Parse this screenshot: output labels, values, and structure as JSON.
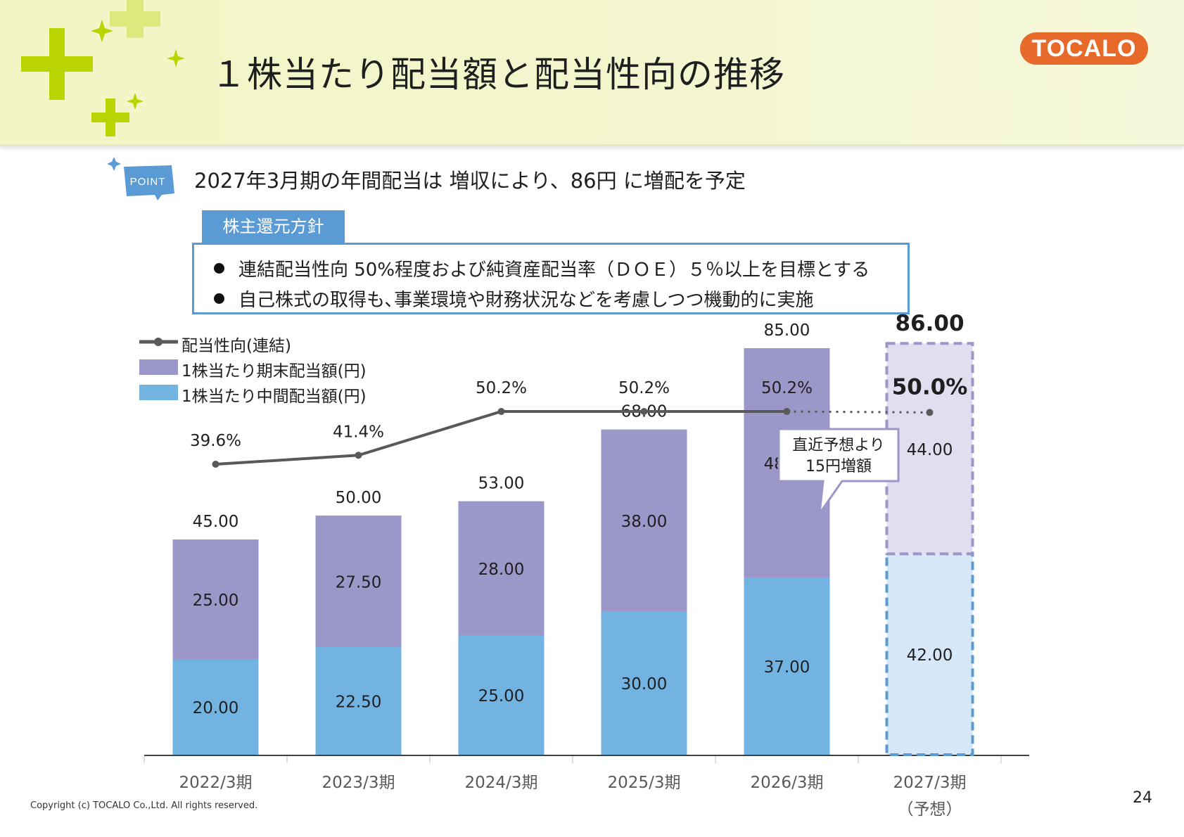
{
  "header": {
    "title": "１株当たり配当額と配当性向の推移",
    "logo_text": "TOCALO"
  },
  "point": {
    "badge_label": "POINT",
    "text": "2027年3月期の年間配当は 増収により、86円 に増配を予定"
  },
  "policy": {
    "tab_label": "株主還元方針",
    "items": [
      "連結配当性向 50%程度および純資産配当率（ＤＯＥ）５％以上を目標とする",
      "自己株式の取得も､事業環境や財務状況などを考慮しつつ機動的に実施"
    ]
  },
  "legend": [
    {
      "label": "配当性向(連結)",
      "color": "#595959"
    },
    {
      "label": "1株当たり期末配当額(円)",
      "color": "#9b97c9"
    },
    {
      "label": "1株当たり中間配当額(円)",
      "color": "#72b3e2"
    }
  ],
  "chart_data": {
    "type": "bar",
    "stacked": true,
    "categories": [
      "2022/3期",
      "2023/3期",
      "2024/3期",
      "2025/3期",
      "2026/3期",
      "2027/3期"
    ],
    "forecast_note": "（予想）",
    "series": [
      {
        "name": "1株当たり中間配当額(円)",
        "values": [
          20.0,
          22.5,
          25.0,
          30.0,
          37.0,
          42.0
        ],
        "color": "#72b3e2",
        "labels": [
          "20.00",
          "22.50",
          "25.00",
          "30.00",
          "37.00",
          "42.00"
        ]
      },
      {
        "name": "1株当たり期末配当額(円)",
        "values": [
          25.0,
          27.5,
          28.0,
          38.0,
          48.0,
          44.0
        ],
        "color": "#9b97c9",
        "labels": [
          "25.00",
          "27.50",
          "28.00",
          "38.00",
          "48.00",
          "44.00"
        ]
      }
    ],
    "totals": [
      45.0,
      50.0,
      53.0,
      68.0,
      85.0,
      86.0
    ],
    "total_labels": [
      "45.00",
      "50.00",
      "53.00",
      "68.00",
      "85.00",
      "86.00"
    ],
    "payout_ratio": {
      "name": "配当性向(連結)",
      "values": [
        39.6,
        41.4,
        50.2,
        50.2,
        50.2,
        50.0
      ],
      "labels": [
        "39.6%",
        "41.4%",
        "50.2%",
        "50.2%",
        "50.2%",
        "50.0%"
      ],
      "color": "#595959"
    },
    "forecast_index": 5,
    "callout": "直近予想より\n15円増額",
    "ylim": [
      0,
      100
    ],
    "payout_ylim": [
      30,
      55
    ]
  },
  "footer": {
    "copyright": "Copyright (c) TOCALO Co.,Ltd. All rights reserved.",
    "page_number": "24"
  }
}
